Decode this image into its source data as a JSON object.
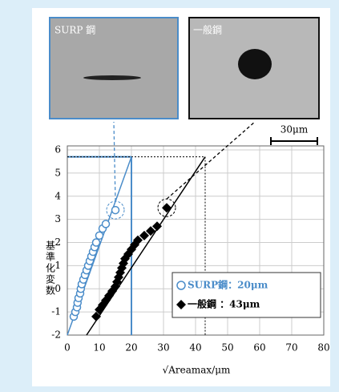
{
  "chart_data": {
    "type": "scatter",
    "photos": [
      {
        "label": "SURP 鋼"
      },
      {
        "label": "一般鋼"
      }
    ],
    "scale_bar": "30μm",
    "y_label": "基準化変数",
    "x_label": "√Areamax/μm",
    "xlim": [
      0,
      80
    ],
    "xticks": [
      0,
      10,
      20,
      30,
      40,
      50,
      60,
      70,
      80
    ],
    "ylim": [
      -2,
      6
    ],
    "yticks": [
      -2,
      -1,
      0,
      1,
      2,
      3,
      4,
      5,
      6
    ],
    "grid": true,
    "legend": "lower right",
    "series": [
      {
        "name": "SURP鋼：20μm",
        "color": "#4a8cc9",
        "marker": "circle",
        "x": [
          2,
          2.5,
          3,
          3.2,
          3.5,
          4,
          4.2,
          4.5,
          5,
          5.5,
          6,
          6.5,
          7,
          7.5,
          8,
          8.5,
          9,
          10,
          11,
          12,
          15
        ],
        "values": [
          -1.2,
          -1,
          -0.8,
          -0.6,
          -0.4,
          -0.2,
          0,
          0.2,
          0.4,
          0.6,
          0.8,
          1,
          1.2,
          1.4,
          1.6,
          1.8,
          2,
          2.3,
          2.6,
          2.8,
          3.4
        ]
      },
      {
        "name": "一般鋼 ：43μm",
        "color": "#000000",
        "marker": "diamond",
        "x": [
          9,
          10,
          11,
          12,
          13,
          14,
          15,
          15.5,
          16,
          16.5,
          17,
          17.5,
          18,
          19,
          20,
          21,
          22,
          24,
          26,
          28,
          31
        ],
        "values": [
          -1.2,
          -0.9,
          -0.7,
          -0.5,
          -0.3,
          -0.1,
          0.1,
          0.3,
          0.5,
          0.7,
          0.9,
          1.1,
          1.3,
          1.5,
          1.7,
          1.9,
          2.1,
          2.3,
          2.5,
          2.7,
          3.5
        ]
      }
    ],
    "fit_lines": [
      {
        "color": "#4a8cc9",
        "x": [
          0,
          20
        ],
        "values": [
          -2,
          5.7
        ]
      },
      {
        "color": "#000000",
        "x": [
          6,
          43
        ],
        "values": [
          -2,
          5.7
        ]
      }
    ],
    "reference_x": [
      20,
      43
    ],
    "reference_y": 5.7
  }
}
